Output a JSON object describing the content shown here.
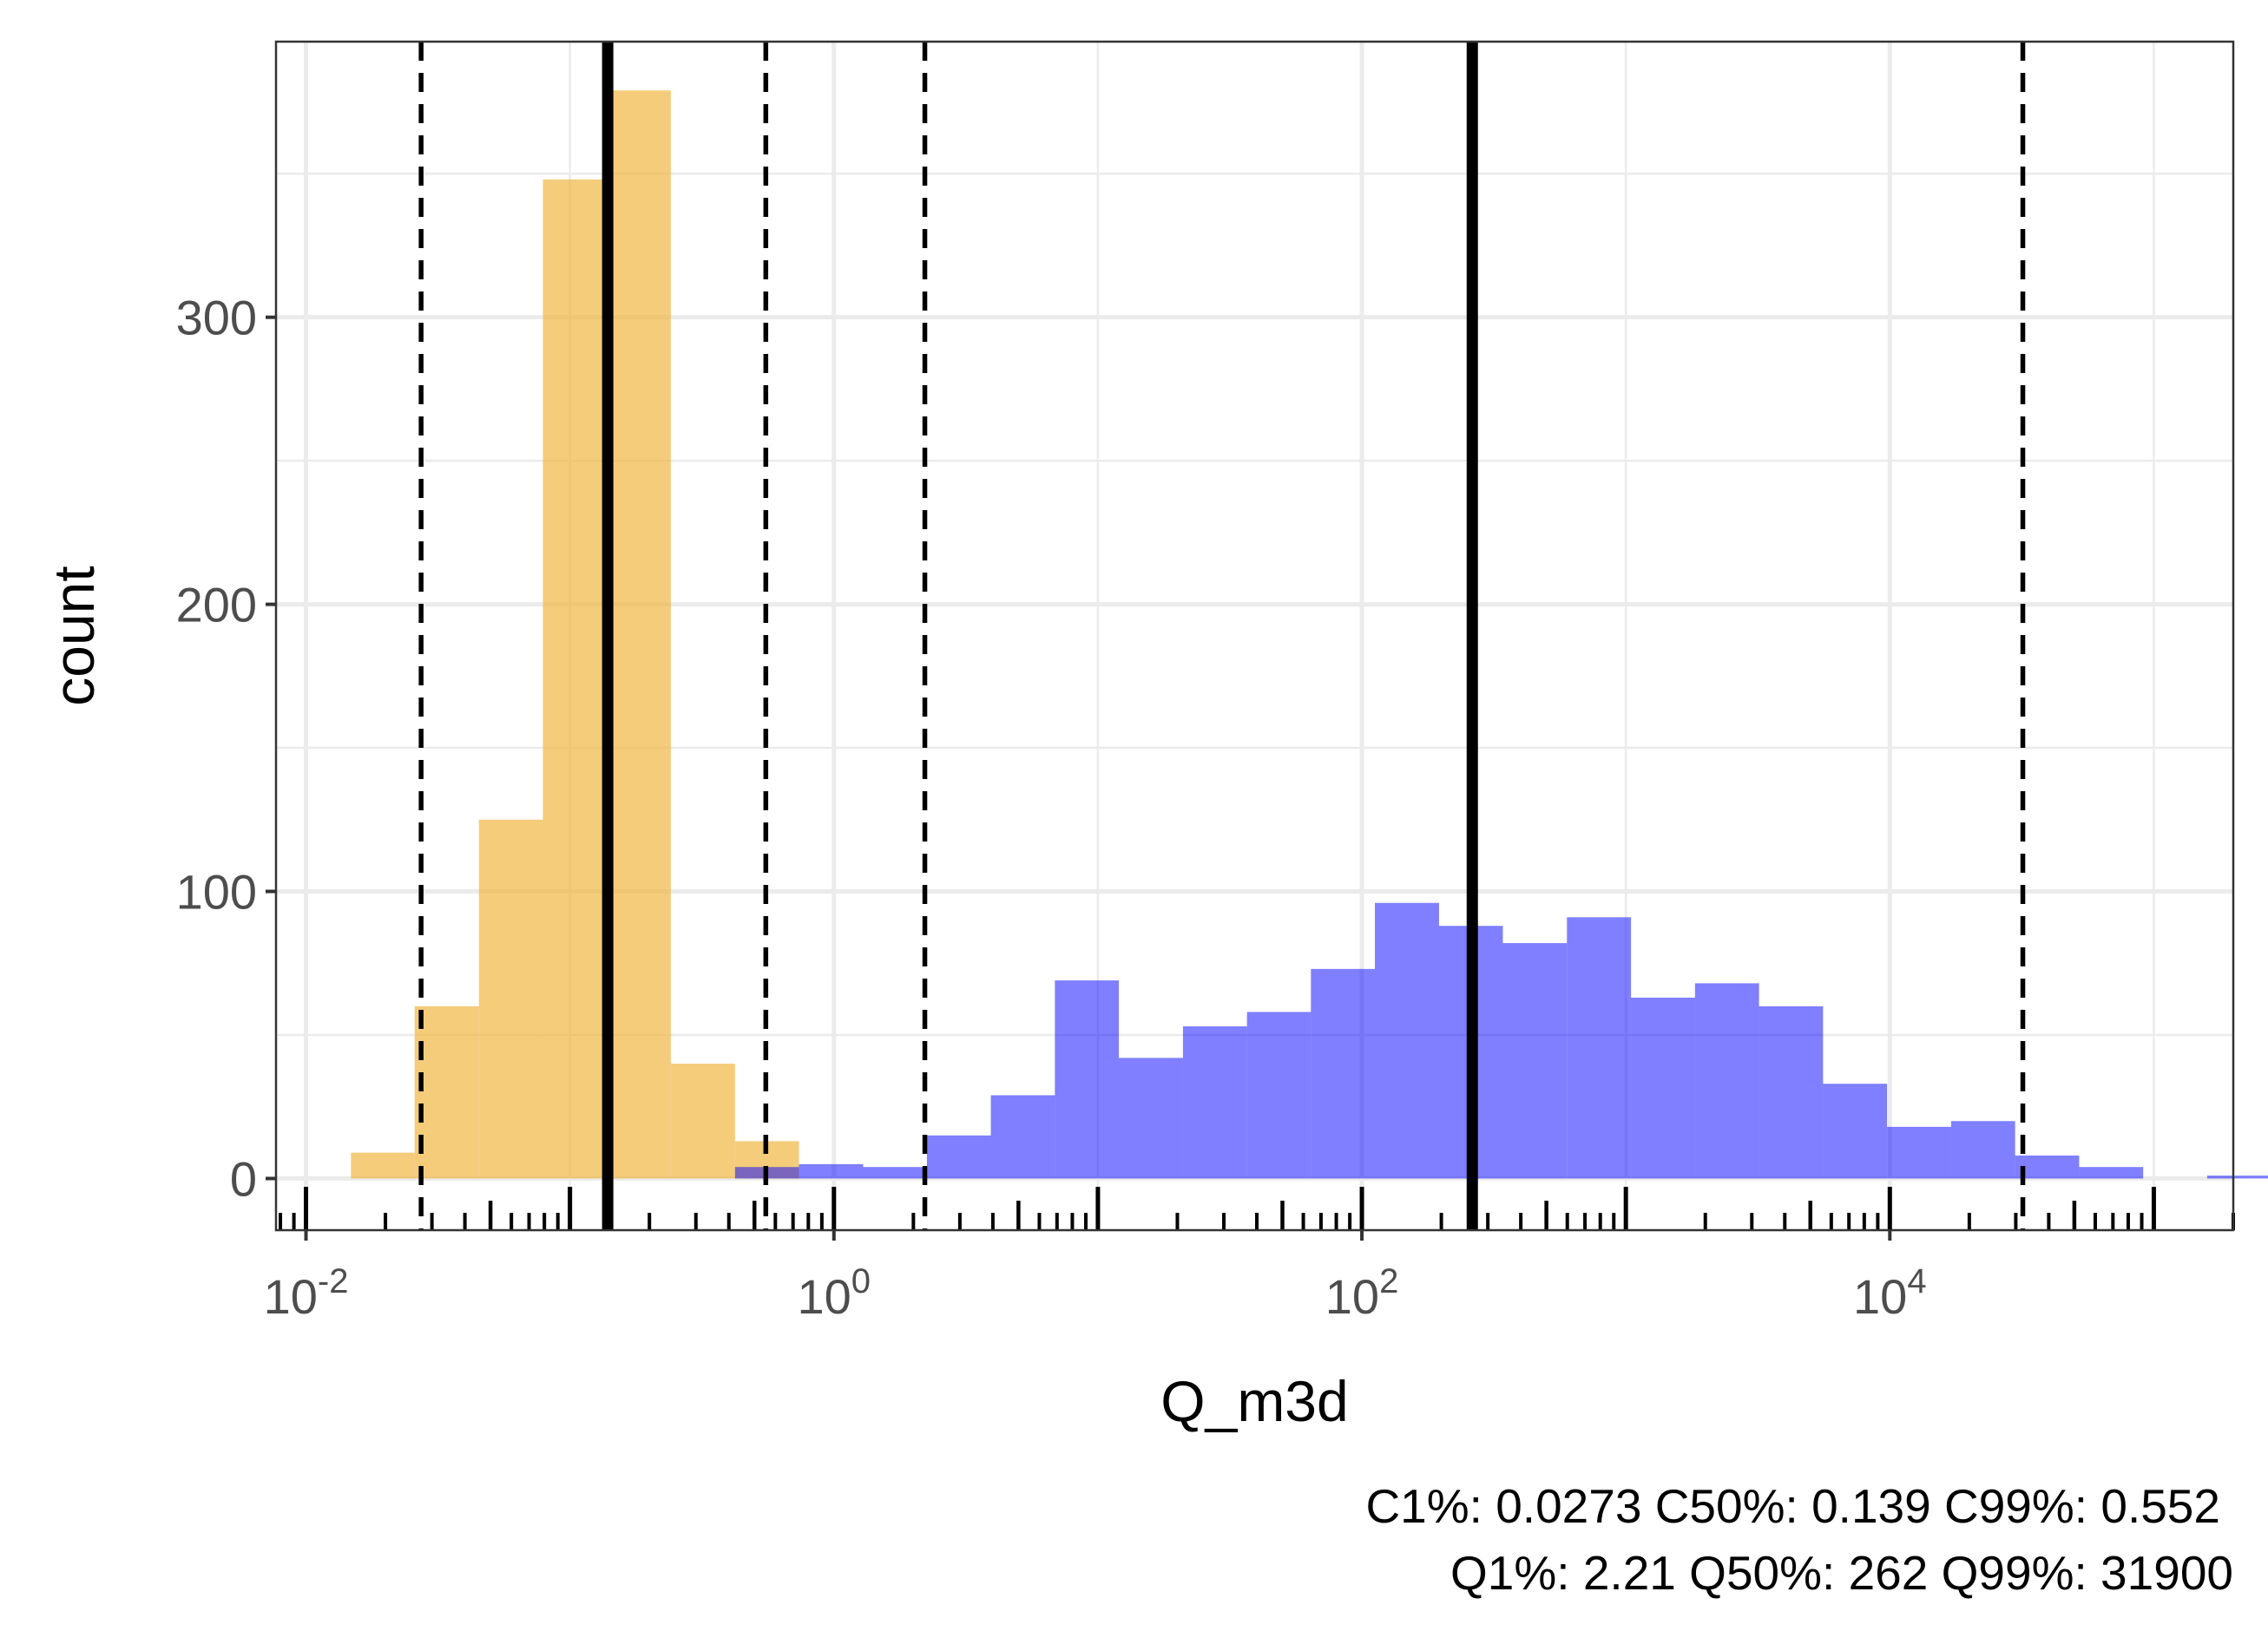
{
  "chart_data": {
    "type": "histogram",
    "xlabel": "Q_m3d",
    "ylabel": "count",
    "x_scale": "log10",
    "xlim": [
      0.0077,
      200000
    ],
    "ylim": [
      -18,
      396
    ],
    "grid": true,
    "y_ticks": [
      0,
      100,
      200,
      300
    ],
    "x_ticks": [
      {
        "value": 0.01,
        "base": "10",
        "exp": "-2"
      },
      {
        "value": 1,
        "base": "10",
        "exp": "0"
      },
      {
        "value": 100,
        "base": "10",
        "exp": "2"
      },
      {
        "value": 10000,
        "base": "10",
        "exp": "4"
      }
    ],
    "series": [
      {
        "color": "#f0b642",
        "opacity": 0.7,
        "bins": [
          {
            "x0": 0.0148,
            "x1": 0.0258,
            "count": 9
          },
          {
            "x0": 0.0258,
            "x1": 0.0452,
            "count": 60
          },
          {
            "x0": 0.0452,
            "x1": 0.079,
            "count": 125
          },
          {
            "x0": 0.079,
            "x1": 0.138,
            "count": 348
          },
          {
            "x0": 0.138,
            "x1": 0.241,
            "count": 379
          },
          {
            "x0": 0.241,
            "x1": 0.422,
            "count": 40
          },
          {
            "x0": 0.422,
            "x1": 0.737,
            "count": 13
          }
        ]
      },
      {
        "color": "#0000ff",
        "opacity": 0.5,
        "bins": [
          {
            "x0": 0.422,
            "x1": 0.737,
            "count": 4
          },
          {
            "x0": 0.737,
            "x1": 1.29,
            "count": 5
          },
          {
            "x0": 1.29,
            "x1": 2.25,
            "count": 4
          },
          {
            "x0": 2.25,
            "x1": 3.93,
            "count": 15
          },
          {
            "x0": 3.93,
            "x1": 6.87,
            "count": 29
          },
          {
            "x0": 6.87,
            "x1": 12.0,
            "count": 69
          },
          {
            "x0": 12.0,
            "x1": 21.0,
            "count": 42
          },
          {
            "x0": 21.0,
            "x1": 36.7,
            "count": 53
          },
          {
            "x0": 36.7,
            "x1": 64.1,
            "count": 58
          },
          {
            "x0": 64.1,
            "x1": 112,
            "count": 73
          },
          {
            "x0": 112,
            "x1": 196,
            "count": 96
          },
          {
            "x0": 196,
            "x1": 342,
            "count": 88
          },
          {
            "x0": 342,
            "x1": 598,
            "count": 82
          },
          {
            "x0": 598,
            "x1": 1046,
            "count": 91
          },
          {
            "x0": 1046,
            "x1": 1828,
            "count": 63
          },
          {
            "x0": 1828,
            "x1": 3195,
            "count": 68
          },
          {
            "x0": 3195,
            "x1": 5585,
            "count": 60
          },
          {
            "x0": 5585,
            "x1": 9762,
            "count": 33
          },
          {
            "x0": 9762,
            "x1": 17064,
            "count": 18
          },
          {
            "x0": 17064,
            "x1": 29826,
            "count": 20
          },
          {
            "x0": 29826,
            "x1": 52134,
            "count": 8
          },
          {
            "x0": 52134,
            "x1": 91126,
            "count": 4
          },
          {
            "x0": 91126,
            "x1": 159280,
            "count": 0
          },
          {
            "x0": 159280,
            "x1": 278400,
            "count": 1
          }
        ]
      }
    ],
    "vlines_solid": [
      0.139,
      262
    ],
    "vlines_dashed": [
      0.0273,
      0.552,
      2.21,
      31900
    ],
    "caption": [
      "C1%: 0.0273 C50%: 0.139 C99%: 0.552",
      "Q1%: 2.21 Q50%: 262 Q99%: 31900"
    ]
  }
}
